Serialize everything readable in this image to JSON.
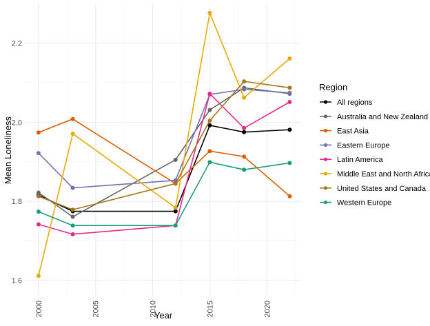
{
  "chart_data": {
    "type": "line",
    "xlabel": "Year",
    "ylabel": "Mean Loneliness",
    "xlim": [
      1998.8,
      2023
    ],
    "ylim": [
      1.56,
      2.3
    ],
    "x_ticks": [
      2000,
      2005,
      2010,
      2015,
      2020
    ],
    "y_ticks": [
      1.6,
      1.8,
      2.0,
      2.2
    ],
    "grid": true,
    "legend_title": "Region",
    "legend_placement": "right",
    "x": [
      2000,
      2003,
      2012,
      2015,
      2018,
      2022
    ],
    "series": [
      {
        "name": "All regions",
        "color": "#000000",
        "values": [
          1.816,
          1.775,
          1.775,
          1.992,
          1.975,
          1.981
        ]
      },
      {
        "name": "Australia and New Zealand",
        "color": "#666666",
        "values": [
          1.822,
          1.761,
          1.905,
          2.031,
          2.087,
          2.072
        ]
      },
      {
        "name": "East Asia",
        "color": "#D95F02",
        "values": [
          1.974,
          2.008,
          1.845,
          1.927,
          1.913,
          1.813
        ]
      },
      {
        "name": "Eastern Europe",
        "color": "#7570B3",
        "values": [
          1.922,
          1.834,
          1.853,
          2.07,
          2.083,
          2.074
        ]
      },
      {
        "name": "Latin America",
        "color": "#E7298A",
        "values": [
          1.742,
          1.717,
          1.739,
          2.072,
          1.985,
          2.051
        ]
      },
      {
        "name": "Middle East and North Africa",
        "color": "#E6AB02",
        "values": [
          1.612,
          1.971,
          1.784,
          2.276,
          2.062,
          2.161
        ]
      },
      {
        "name": "United States and Canada",
        "color": "#A6761D",
        "values": [
          1.813,
          1.779,
          1.845,
          2.004,
          2.103,
          2.087
        ]
      },
      {
        "name": "Western Europe",
        "color": "#1B9E77",
        "values": [
          1.774,
          1.739,
          1.739,
          1.899,
          1.88,
          1.897
        ]
      }
    ]
  }
}
